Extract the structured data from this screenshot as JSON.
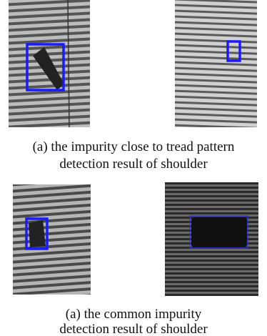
{
  "panels": [
    {
      "caption": [
        "(a) the impurity close to tread pattern",
        "detection result of shoulder"
      ]
    },
    {
      "caption": [
        "(a) the common impurity",
        "detection result of shoulder"
      ]
    }
  ]
}
